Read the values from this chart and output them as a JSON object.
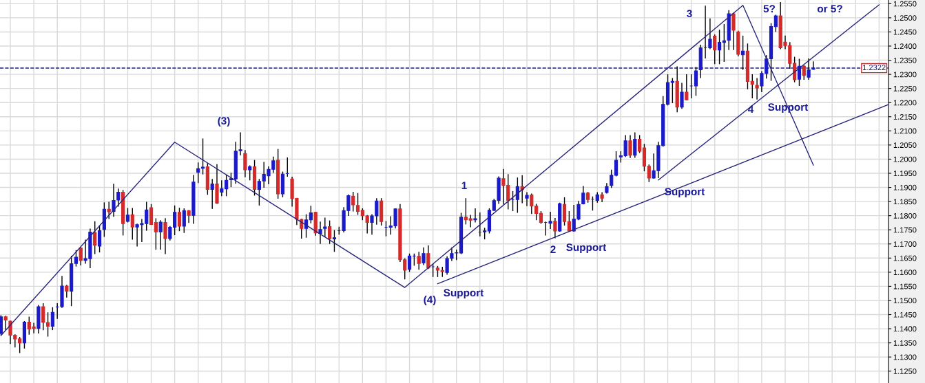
{
  "chart_data": {
    "type": "candlestick",
    "categories": [
      null,
      null,
      null,
      null,
      null,
      null,
      null,
      null,
      null,
      null,
      null,
      null,
      null,
      null,
      null,
      null,
      null,
      null,
      null,
      null,
      null,
      null,
      null,
      null,
      null,
      null,
      null,
      null,
      null,
      null,
      null,
      null,
      null,
      null,
      null,
      null,
      null,
      null,
      null,
      null,
      null,
      null,
      null,
      null,
      null,
      null,
      null,
      null,
      null,
      null,
      null,
      null,
      null,
      null,
      null,
      null,
      null,
      null,
      null,
      null,
      null,
      null,
      null,
      null,
      null,
      null,
      null,
      null,
      null,
      null,
      null,
      null,
      null,
      null,
      null,
      null,
      null,
      null,
      null,
      null,
      null,
      null,
      null,
      null,
      null,
      null,
      null,
      null,
      null,
      null,
      null,
      null,
      null,
      null,
      null,
      null,
      null,
      null,
      null,
      null,
      null,
      null,
      null,
      null,
      null,
      null,
      null,
      null,
      null,
      null,
      null,
      null,
      null,
      null,
      null,
      null,
      null,
      null,
      null,
      null,
      null,
      null,
      null,
      null,
      null,
      null,
      null,
      null,
      null,
      null,
      null,
      null,
      null,
      null,
      null,
      null,
      null,
      null,
      null,
      null,
      null,
      null,
      null,
      null,
      null,
      null,
      null,
      null,
      null,
      null,
      null,
      null,
      null,
      null,
      null,
      null,
      null,
      null,
      null,
      null,
      null,
      null,
      null,
      null,
      null,
      null,
      null,
      null,
      null,
      null,
      null,
      null,
      null,
      null,
      null,
      null,
      null,
      null,
      null,
      null,
      null,
      null,
      null,
      null,
      null,
      null,
      null,
      null,
      null,
      null
    ],
    "ohlc": [
      [
        1.1383,
        1.1448,
        1.1379,
        1.1442
      ],
      [
        1.1442,
        1.1446,
        1.1395,
        1.1431
      ],
      [
        1.1427,
        1.1429,
        1.1346,
        1.1377
      ],
      [
        1.1377,
        1.138,
        1.1334,
        1.1364
      ],
      [
        1.1364,
        1.1371,
        1.1314,
        1.135
      ],
      [
        1.135,
        1.1427,
        1.133,
        1.1423
      ],
      [
        1.1423,
        1.1443,
        1.1379,
        1.1399
      ],
      [
        1.1407,
        1.1421,
        1.1384,
        1.1401
      ],
      [
        1.1401,
        1.1484,
        1.1383,
        1.1478
      ],
      [
        1.1478,
        1.149,
        1.1395,
        1.1423
      ],
      [
        1.1422,
        1.1458,
        1.1372,
        1.1409
      ],
      [
        1.1409,
        1.1476,
        1.1395,
        1.1458
      ],
      [
        1.1477,
        1.149,
        1.1435,
        1.1477
      ],
      [
        1.1478,
        1.1587,
        1.1474,
        1.1551
      ],
      [
        1.1551,
        1.1555,
        1.151,
        1.1533
      ],
      [
        1.1533,
        1.1658,
        1.148,
        1.163
      ],
      [
        1.1631,
        1.1678,
        1.162,
        1.1653
      ],
      [
        1.1685,
        1.1689,
        1.1624,
        1.1642
      ],
      [
        1.1642,
        1.1715,
        1.163,
        1.1648
      ],
      [
        1.1648,
        1.1754,
        1.1614,
        1.1742
      ],
      [
        1.174,
        1.178,
        1.1664,
        1.1695
      ],
      [
        1.1692,
        1.1766,
        1.167,
        1.1747
      ],
      [
        1.1751,
        1.1847,
        1.1725,
        1.1823
      ],
      [
        1.1823,
        1.1849,
        1.1788,
        1.1814
      ],
      [
        1.1815,
        1.1913,
        1.1796,
        1.1854
      ],
      [
        1.1855,
        1.1896,
        1.1832,
        1.1883
      ],
      [
        1.1883,
        1.1891,
        1.173,
        1.1772
      ],
      [
        1.178,
        1.1827,
        1.1776,
        1.1802
      ],
      [
        1.1803,
        1.1827,
        1.1715,
        1.176
      ],
      [
        1.176,
        1.1772,
        1.1691,
        1.1768
      ],
      [
        1.1768,
        1.1788,
        1.1707,
        1.1772
      ],
      [
        1.1772,
        1.1849,
        1.1747,
        1.182
      ],
      [
        1.1828,
        1.1841,
        1.1768,
        1.1769
      ],
      [
        1.1776,
        1.1791,
        1.168,
        1.1743
      ],
      [
        1.1743,
        1.1784,
        1.168,
        1.1777
      ],
      [
        1.1776,
        1.1791,
        1.1664,
        1.1719
      ],
      [
        1.1719,
        1.1763,
        1.1712,
        1.1759
      ],
      [
        1.1759,
        1.1836,
        1.1731,
        1.1812
      ],
      [
        1.1812,
        1.1828,
        1.1745,
        1.1763
      ],
      [
        1.1763,
        1.1826,
        1.1739,
        1.1818
      ],
      [
        1.1818,
        1.182,
        1.1774,
        1.1801
      ],
      [
        1.1801,
        1.1944,
        1.1771,
        1.1919
      ],
      [
        1.1954,
        1.1988,
        1.1915,
        1.1966
      ],
      [
        1.1968,
        1.2073,
        1.1946,
        1.1972
      ],
      [
        1.1973,
        1.1986,
        1.1874,
        1.1893
      ],
      [
        1.1893,
        1.193,
        1.1824,
        1.1912
      ],
      [
        1.1912,
        1.1982,
        1.1842,
        1.1844
      ],
      [
        1.1883,
        1.1925,
        1.1869,
        1.1895
      ],
      [
        1.1895,
        1.1944,
        1.1869,
        1.1925
      ],
      [
        1.1927,
        1.1952,
        1.1901,
        1.1931
      ],
      [
        1.193,
        1.2061,
        1.1913,
        1.2028
      ],
      [
        1.203,
        1.2095,
        1.2013,
        1.2033
      ],
      [
        1.202,
        1.2032,
        1.1936,
        1.1962
      ],
      [
        1.1962,
        1.1978,
        1.1925,
        1.1973
      ],
      [
        1.1973,
        1.1997,
        1.1871,
        1.1893
      ],
      [
        1.1893,
        1.193,
        1.1836,
        1.1921
      ],
      [
        1.1923,
        1.199,
        1.1899,
        1.1946
      ],
      [
        1.1941,
        1.1974,
        1.1911,
        1.1964
      ],
      [
        1.1964,
        1.2009,
        1.1951,
        1.1994
      ],
      [
        1.1996,
        1.2036,
        1.186,
        1.1877
      ],
      [
        1.1877,
        1.1956,
        1.1865,
        1.1947
      ],
      [
        1.1949,
        1.2006,
        1.1938,
        1.1949
      ],
      [
        1.193,
        1.1938,
        1.1832,
        1.1861
      ],
      [
        1.1861,
        1.1863,
        1.1767,
        1.1788
      ],
      [
        1.1787,
        1.1789,
        1.1719,
        1.1755
      ],
      [
        1.1755,
        1.1805,
        1.1722,
        1.1785
      ],
      [
        1.1785,
        1.1835,
        1.1773,
        1.181
      ],
      [
        1.1812,
        1.1814,
        1.1729,
        1.1739
      ],
      [
        1.1737,
        1.1779,
        1.17,
        1.1751
      ],
      [
        1.1755,
        1.1793,
        1.1725,
        1.176
      ],
      [
        1.1761,
        1.1783,
        1.17,
        1.1719
      ],
      [
        1.1718,
        1.1749,
        1.1672,
        1.1722
      ],
      [
        1.1747,
        1.1761,
        1.1733,
        1.1747
      ],
      [
        1.1747,
        1.183,
        1.1741,
        1.1818
      ],
      [
        1.1818,
        1.1875,
        1.1799,
        1.1871
      ],
      [
        1.1869,
        1.1884,
        1.1815,
        1.1838
      ],
      [
        1.1836,
        1.188,
        1.1803,
        1.1815
      ],
      [
        1.1819,
        1.1826,
        1.1784,
        1.18
      ],
      [
        1.1799,
        1.1802,
        1.1737,
        1.1776
      ],
      [
        1.1776,
        1.1805,
        1.1733,
        1.1799
      ],
      [
        1.1799,
        1.1862,
        1.1768,
        1.1852
      ],
      [
        1.1852,
        1.1862,
        1.1765,
        1.1779
      ],
      [
        1.1759,
        1.1781,
        1.1727,
        1.1759
      ],
      [
        1.1759,
        1.1798,
        1.1733,
        1.1764
      ],
      [
        1.1764,
        1.1826,
        1.1755,
        1.1824
      ],
      [
        1.1824,
        1.1841,
        1.1636,
        1.1644
      ],
      [
        1.1644,
        1.1649,
        1.1575,
        1.1607
      ],
      [
        1.161,
        1.1666,
        1.1601,
        1.1657
      ],
      [
        1.1657,
        1.1666,
        1.1623,
        1.1657
      ],
      [
        1.1656,
        1.1672,
        1.1609,
        1.1631
      ],
      [
        1.1633,
        1.1688,
        1.1625,
        1.1666
      ],
      [
        1.1666,
        1.1695,
        1.1611,
        1.1615
      ],
      [
        1.1619,
        1.163,
        1.1583,
        1.1619
      ],
      [
        1.1615,
        1.1622,
        1.1583,
        1.1607
      ],
      [
        1.1606,
        1.1619,
        1.1583,
        1.1603
      ],
      [
        1.1599,
        1.1656,
        1.1591,
        1.1648
      ],
      [
        1.1649,
        1.1688,
        1.164,
        1.1666
      ],
      [
        1.1668,
        1.168,
        1.1643,
        1.1669
      ],
      [
        1.1668,
        1.181,
        1.1664,
        1.1795
      ],
      [
        1.1795,
        1.1862,
        1.1769,
        1.1785
      ],
      [
        1.1789,
        1.1803,
        1.1759,
        1.1784
      ],
      [
        1.1785,
        1.1826,
        1.1776,
        1.1789
      ],
      [
        1.1742,
        1.1811,
        1.1727,
        1.1742
      ],
      [
        1.1743,
        1.1757,
        1.1716,
        1.1746
      ],
      [
        1.1746,
        1.1826,
        1.1737,
        1.1819
      ],
      [
        1.1819,
        1.186,
        1.1816,
        1.1853
      ],
      [
        1.1854,
        1.1939,
        1.1842,
        1.1933
      ],
      [
        1.1931,
        1.1965,
        1.184,
        1.1907
      ],
      [
        1.1907,
        1.1947,
        1.1822,
        1.1854
      ],
      [
        1.1857,
        1.1887,
        1.1816,
        1.1857
      ],
      [
        1.1857,
        1.1935,
        1.181,
        1.1903
      ],
      [
        1.1903,
        1.1943,
        1.1844,
        1.1892
      ],
      [
        1.1862,
        1.1883,
        1.1834,
        1.1872
      ],
      [
        1.1873,
        1.1878,
        1.1806,
        1.1834
      ],
      [
        1.1834,
        1.1842,
        1.1784,
        1.1808
      ],
      [
        1.1808,
        1.1816,
        1.1771,
        1.1776
      ],
      [
        1.1776,
        1.1779,
        1.173,
        1.1776
      ],
      [
        1.1773,
        1.1814,
        1.1753,
        1.178
      ],
      [
        1.178,
        1.1792,
        1.172,
        1.1746
      ],
      [
        1.1746,
        1.1846,
        1.1743,
        1.1842
      ],
      [
        1.184,
        1.1865,
        1.1765,
        1.1779
      ],
      [
        1.1779,
        1.1816,
        1.1744,
        1.1746
      ],
      [
        1.1746,
        1.1838,
        1.1743,
        1.1788
      ],
      [
        1.1788,
        1.1852,
        1.1784,
        1.184
      ],
      [
        1.1842,
        1.1905,
        1.184,
        1.188
      ],
      [
        1.188,
        1.1884,
        1.1846,
        1.1857
      ],
      [
        1.1858,
        1.1868,
        1.1818,
        1.1858
      ],
      [
        1.1854,
        1.1883,
        1.1846,
        1.1874
      ],
      [
        1.1874,
        1.1883,
        1.1848,
        1.1862
      ],
      [
        1.1882,
        1.1915,
        1.1878,
        1.1903
      ],
      [
        1.1907,
        1.1963,
        1.1898,
        1.1943
      ],
      [
        1.1943,
        1.2028,
        1.1939,
        1.1996
      ],
      [
        1.2008,
        1.2028,
        1.1988,
        1.2012
      ],
      [
        1.2012,
        1.2085,
        1.2008,
        1.2065
      ],
      [
        1.2065,
        1.2085,
        1.2004,
        1.2014
      ],
      [
        1.2014,
        1.2095,
        1.2005,
        1.207
      ],
      [
        1.207,
        1.2085,
        1.2022,
        1.2028
      ],
      [
        1.204,
        1.2054,
        1.1957,
        1.1975
      ],
      [
        1.1975,
        1.1981,
        1.1919,
        1.1933
      ],
      [
        1.1933,
        1.202,
        1.1931,
        1.1959
      ],
      [
        1.1959,
        1.2061,
        1.1933,
        1.2048
      ],
      [
        1.2048,
        1.2223,
        1.2044,
        1.2194
      ],
      [
        1.2194,
        1.23,
        1.219,
        1.2271
      ],
      [
        1.2271,
        1.2287,
        1.2198,
        1.2275
      ],
      [
        1.2275,
        1.2328,
        1.2166,
        1.2184
      ],
      [
        1.2184,
        1.227,
        1.2178,
        1.2237
      ],
      [
        1.2237,
        1.23,
        1.2208,
        1.221
      ],
      [
        1.2259,
        1.23,
        1.2215,
        1.2259
      ],
      [
        1.2259,
        1.2326,
        1.2224,
        1.2312
      ],
      [
        1.2316,
        1.2405,
        1.2287,
        1.2394
      ],
      [
        1.2394,
        1.2543,
        1.2356,
        1.2394
      ],
      [
        1.2394,
        1.2498,
        1.2389,
        1.2424
      ],
      [
        1.2435,
        1.2441,
        1.2336,
        1.2386
      ],
      [
        1.2386,
        1.2458,
        1.2336,
        1.2413
      ],
      [
        1.2413,
        1.2478,
        1.2344,
        1.2419
      ],
      [
        1.2421,
        1.2527,
        1.2386,
        1.2514
      ],
      [
        1.2514,
        1.2518,
        1.2386,
        1.2456
      ],
      [
        1.245,
        1.2454,
        1.2364,
        1.2371
      ],
      [
        1.2369,
        1.2437,
        1.2316,
        1.2382
      ],
      [
        1.2382,
        1.2409,
        1.2247,
        1.2275
      ],
      [
        1.2275,
        1.23,
        1.2215,
        1.2265
      ],
      [
        1.2261,
        1.2287,
        1.2211,
        1.2252
      ],
      [
        1.2259,
        1.2311,
        1.2237,
        1.2303
      ],
      [
        1.2303,
        1.2368,
        1.2285,
        1.2355
      ],
      [
        1.2355,
        1.2481,
        1.2277,
        1.2469
      ],
      [
        1.2469,
        1.2511,
        1.245,
        1.2507
      ],
      [
        1.2507,
        1.2556,
        1.2389,
        1.2394
      ],
      [
        1.2414,
        1.2437,
        1.2389,
        1.2402
      ],
      [
        1.2402,
        1.2414,
        1.232,
        1.2339
      ],
      [
        1.2339,
        1.2362,
        1.2272,
        1.2281
      ],
      [
        1.2283,
        1.2355,
        1.2259,
        1.2329
      ],
      [
        1.2329,
        1.2333,
        1.2281,
        1.2296
      ],
      [
        1.229,
        1.2356,
        1.2281,
        1.2316
      ],
      [
        1.2318,
        1.2346,
        1.2316,
        1.2322
      ],
      null,
      null,
      null,
      null,
      null,
      null,
      null,
      null,
      null,
      null,
      null,
      null,
      null,
      null,
      null,
      null
    ],
    "colors": [
      "#1a1ac8",
      "#d42a2a",
      "#d42a2a",
      "#d42a2a",
      "#d42a2a",
      "#1a1ac8",
      "#d42a2a",
      "#d42a2a",
      "#1a1ac8",
      "#d42a2a",
      "#d42a2a",
      "#1a1ac8",
      "#1a1ac8",
      "#1a1ac8",
      "#d42a2a",
      "#1a1ac8",
      "#1a1ac8",
      "#d42a2a",
      "#1a1ac8",
      "#1a1ac8",
      "#d42a2a",
      "#1a1ac8",
      "#1a1ac8",
      "#d42a2a",
      "#1a1ac8",
      "#1a1ac8",
      "#d42a2a",
      "#1a1ac8",
      "#d42a2a",
      "#1a1ac8",
      "#1a1ac8",
      "#1a1ac8",
      "#d42a2a",
      "#d42a2a",
      "#1a1ac8",
      "#d42a2a",
      "#1a1ac8",
      "#1a1ac8",
      "#d42a2a",
      "#1a1ac8",
      "#d42a2a",
      "#1a1ac8",
      "#1a1ac8",
      "#1a1ac8",
      "#d42a2a",
      "#1a1ac8",
      "#d42a2a",
      "#1a1ac8",
      "#1a1ac8",
      "#1a1ac8",
      "#1a1ac8",
      "#1a1ac8",
      "#d42a2a",
      "#1a1ac8",
      "#d42a2a",
      "#1a1ac8",
      "#1a1ac8",
      "#1a1ac8",
      "#1a1ac8",
      "#d42a2a",
      "#1a1ac8",
      "#1a1ac8",
      "#d42a2a",
      "#d42a2a",
      "#d42a2a",
      "#1a1ac8",
      "#1a1ac8",
      "#d42a2a",
      "#1a1ac8",
      "#1a1ac8",
      "#d42a2a",
      "#1a1ac8",
      "#1a1ac8",
      "#1a1ac8",
      "#1a1ac8",
      "#d42a2a",
      "#d42a2a",
      "#d42a2a",
      "#d42a2a",
      "#1a1ac8",
      "#1a1ac8",
      "#d42a2a",
      "#1a1ac8",
      "#1a1ac8",
      "#1a1ac8",
      "#d42a2a",
      "#d42a2a",
      "#1a1ac8",
      "#1a1ac8",
      "#d42a2a",
      "#1a1ac8",
      "#d42a2a",
      "#1a1ac8",
      "#d42a2a",
      "#d42a2a",
      "#1a1ac8",
      "#1a1ac8",
      "#1a1ac8",
      "#1a1ac8",
      "#d42a2a",
      "#d42a2a",
      "#1a1ac8",
      "#1a1ac8",
      "#1a1ac8",
      "#1a1ac8",
      "#1a1ac8",
      "#1a1ac8",
      "#d42a2a",
      "#d42a2a",
      "#1a1ac8",
      "#1a1ac8",
      "#d42a2a",
      "#1a1ac8",
      "#d42a2a",
      "#d42a2a",
      "#d42a2a",
      "#1a1ac8",
      "#1a1ac8",
      "#d42a2a",
      "#1a1ac8",
      "#d42a2a",
      "#d42a2a",
      "#1a1ac8",
      "#1a1ac8",
      "#1a1ac8",
      "#d42a2a",
      "#1a1ac8",
      "#1a1ac8",
      "#d42a2a",
      "#1a1ac8",
      "#1a1ac8",
      "#1a1ac8",
      "#1a1ac8",
      "#1a1ac8",
      "#d42a2a",
      "#1a1ac8",
      "#d42a2a",
      "#d42a2a",
      "#d42a2a",
      "#1a1ac8",
      "#1a1ac8",
      "#1a1ac8",
      "#1a1ac8",
      "#1a1ac8",
      "#d42a2a",
      "#1a1ac8",
      "#d42a2a",
      "#1a1ac8",
      "#1a1ac8",
      "#1a1ac8",
      "#1a1ac8",
      "#1a1ac8",
      "#d42a2a",
      "#1a1ac8",
      "#1a1ac8",
      "#1a1ac8",
      "#d42a2a",
      "#d42a2a",
      "#1a1ac8",
      "#d42a2a",
      "#d42a2a",
      "#d42a2a",
      "#1a1ac8",
      "#1a1ac8",
      "#1a1ac8",
      "#1a1ac8",
      "#d42a2a",
      "#d42a2a",
      "#d42a2a",
      "#d42a2a",
      "#1a1ac8",
      "#d42a2a",
      "#1a1ac8",
      "#1a1ac8",
      null,
      null,
      null,
      null,
      null,
      null,
      null,
      null,
      null,
      null,
      null,
      null,
      null,
      null,
      null,
      null
    ],
    "series": [
      {
        "type": "line",
        "color": "#26267a",
        "values": [
          1.1376,
          null,
          null,
          null,
          null,
          null,
          null,
          null,
          null,
          null,
          null,
          null,
          null,
          null,
          null,
          null,
          null,
          null,
          null,
          null,
          null,
          null,
          null,
          null,
          null,
          null,
          null,
          null,
          null,
          null,
          null,
          null,
          null,
          null,
          null,
          null,
          null,
          1.206,
          null,
          null,
          null,
          null,
          null,
          null,
          null,
          null,
          null,
          null,
          null,
          null,
          null,
          null,
          null,
          null,
          null,
          null,
          null,
          null,
          null,
          null,
          null,
          null,
          null,
          null,
          null,
          null,
          null,
          null,
          null,
          null,
          null,
          null,
          null,
          null,
          null,
          null,
          null,
          null,
          null,
          null,
          null,
          null,
          null,
          null,
          null,
          null,
          1.1546,
          null,
          null,
          null,
          null,
          null,
          null,
          null,
          null,
          null,
          null,
          null,
          null,
          null,
          null,
          null,
          null,
          null,
          null,
          null,
          null,
          null,
          null,
          null,
          null,
          null,
          null,
          null,
          null,
          null,
          null,
          null,
          null,
          null,
          null,
          null,
          null,
          null,
          null,
          null,
          null,
          null,
          null,
          null,
          null,
          null,
          null,
          null,
          null,
          null,
          null,
          null,
          null,
          null,
          null,
          null,
          null,
          null,
          null,
          null,
          null,
          null,
          null,
          null,
          null,
          null,
          null,
          null,
          null,
          null,
          null,
          null,
          1.2544,
          null,
          null,
          null,
          null,
          null,
          null,
          null,
          null,
          null,
          null,
          null,
          null,
          null,
          null,
          1.1979,
          null,
          null,
          null,
          null,
          null,
          null,
          null,
          null,
          null,
          null,
          null,
          null,
          null,
          null,
          null,
          null
        ]
      },
      {
        "type": "line",
        "color": "#26267a",
        "values": [
          null,
          null,
          null,
          null,
          null,
          null,
          null,
          null,
          null,
          null,
          null,
          null,
          null,
          null,
          null,
          null,
          null,
          null,
          null,
          null,
          null,
          null,
          null,
          null,
          null,
          null,
          null,
          null,
          null,
          null,
          null,
          null,
          null,
          null,
          null,
          null,
          null,
          null,
          null,
          null,
          null,
          null,
          null,
          null,
          null,
          null,
          null,
          null,
          null,
          null,
          null,
          null,
          null,
          null,
          null,
          null,
          null,
          null,
          null,
          null,
          null,
          null,
          null,
          null,
          null,
          null,
          null,
          null,
          null,
          null,
          null,
          null,
          null,
          null,
          null,
          null,
          null,
          null,
          null,
          null,
          null,
          null,
          null,
          null,
          null,
          null,
          null,
          null,
          null,
          null,
          null,
          null,
          null,
          1.1559,
          null,
          null,
          null,
          null,
          null,
          null,
          null,
          null,
          null,
          null,
          null,
          null,
          null,
          null,
          null,
          null,
          null,
          null,
          null,
          null,
          null,
          null,
          null,
          null,
          null,
          null,
          null,
          null,
          null,
          null,
          null,
          null,
          null,
          null,
          null,
          null,
          null,
          null,
          null,
          null,
          null,
          null,
          null,
          null,
          null,
          null,
          null,
          null,
          null,
          null,
          null,
          null,
          null,
          null,
          null,
          null,
          null,
          null,
          null,
          null,
          null,
          null,
          null,
          null,
          null,
          null,
          null,
          null,
          null,
          null,
          null,
          null,
          null,
          null,
          null,
          null,
          null,
          null,
          null,
          null,
          null,
          null,
          null,
          null,
          null,
          null,
          null,
          null,
          null,
          null,
          null,
          null,
          null,
          null,
          null,
          1.2193
        ]
      },
      {
        "type": "line",
        "color": "#26267a",
        "values": [
          null,
          null,
          null,
          null,
          null,
          null,
          null,
          null,
          null,
          null,
          null,
          null,
          null,
          null,
          null,
          null,
          null,
          null,
          null,
          null,
          null,
          null,
          null,
          null,
          null,
          null,
          null,
          null,
          null,
          null,
          null,
          null,
          null,
          null,
          null,
          null,
          null,
          null,
          null,
          null,
          null,
          null,
          null,
          null,
          null,
          null,
          null,
          null,
          null,
          null,
          null,
          null,
          null,
          null,
          null,
          null,
          null,
          null,
          null,
          null,
          null,
          null,
          null,
          null,
          null,
          null,
          null,
          null,
          null,
          null,
          null,
          null,
          null,
          null,
          null,
          null,
          null,
          null,
          null,
          null,
          null,
          null,
          null,
          null,
          null,
          null,
          null,
          null,
          null,
          null,
          null,
          null,
          null,
          null,
          null,
          null,
          null,
          null,
          null,
          null,
          null,
          null,
          null,
          null,
          null,
          null,
          null,
          null,
          null,
          null,
          null,
          null,
          null,
          null,
          null,
          null,
          null,
          null,
          null,
          null,
          null,
          null,
          null,
          null,
          null,
          null,
          null,
          null,
          null,
          null,
          null,
          null,
          null,
          null,
          null,
          null,
          null,
          null,
          null,
          null,
          1.1926,
          null,
          null,
          null,
          null,
          null,
          null,
          null,
          null,
          null,
          null,
          null,
          null,
          null,
          null,
          null,
          null,
          null,
          null,
          null,
          null,
          null,
          null,
          null,
          null,
          null,
          null,
          null,
          null,
          null,
          null,
          null,
          null,
          null,
          null,
          null,
          null,
          null,
          null,
          null,
          null,
          null,
          null,
          null,
          null,
          null,
          null,
          1.2546,
          null,
          null
        ]
      }
    ],
    "ylim": [
      1.1208,
      1.2563
    ],
    "yticks": [
      {
        "value": 1.125,
        "label": "1.1250"
      },
      {
        "value": 1.13,
        "label": "1.1300"
      },
      {
        "value": 1.135,
        "label": "1.1350"
      },
      {
        "value": 1.14,
        "label": "1.1400"
      },
      {
        "value": 1.145,
        "label": "1.1450"
      },
      {
        "value": 1.15,
        "label": "1.1500"
      },
      {
        "value": 1.155,
        "label": "1.1550"
      },
      {
        "value": 1.16,
        "label": "1.1600"
      },
      {
        "value": 1.165,
        "label": "1.1650"
      },
      {
        "value": 1.17,
        "label": "1.1700"
      },
      {
        "value": 1.175,
        "label": "1.1750"
      },
      {
        "value": 1.18,
        "label": "1.1800"
      },
      {
        "value": 1.185,
        "label": "1.1850"
      },
      {
        "value": 1.19,
        "label": "1.1900"
      },
      {
        "value": 1.195,
        "label": "1.1950"
      },
      {
        "value": 1.2,
        "label": "1.2000"
      },
      {
        "value": 1.205,
        "label": "1.2050"
      },
      {
        "value": 1.21,
        "label": "1.2100"
      },
      {
        "value": 1.215,
        "label": "1.2150"
      },
      {
        "value": 1.22,
        "label": "1.2200"
      },
      {
        "value": 1.225,
        "label": "1.2250"
      },
      {
        "value": 1.23,
        "label": "1.2300"
      },
      {
        "value": 1.235,
        "label": "1.2350"
      },
      {
        "value": 1.24,
        "label": "1.2400"
      },
      {
        "value": 1.245,
        "label": "1.2450"
      },
      {
        "value": 1.25,
        "label": "1.2500"
      },
      {
        "value": 1.255,
        "label": "1.2550"
      }
    ],
    "ref_lines": [
      {
        "axis": "y",
        "value": 1.2322,
        "label": "1.2322",
        "color": "#1a1a80",
        "line_style": "dashed"
      }
    ],
    "annotations": [
      "(3)",
      "1",
      "2",
      "3",
      "4",
      "5?",
      "or 5?",
      "(4)",
      "Support",
      "Support",
      "Support",
      "Support"
    ],
    "grid": true,
    "tick_labels": "y"
  }
}
